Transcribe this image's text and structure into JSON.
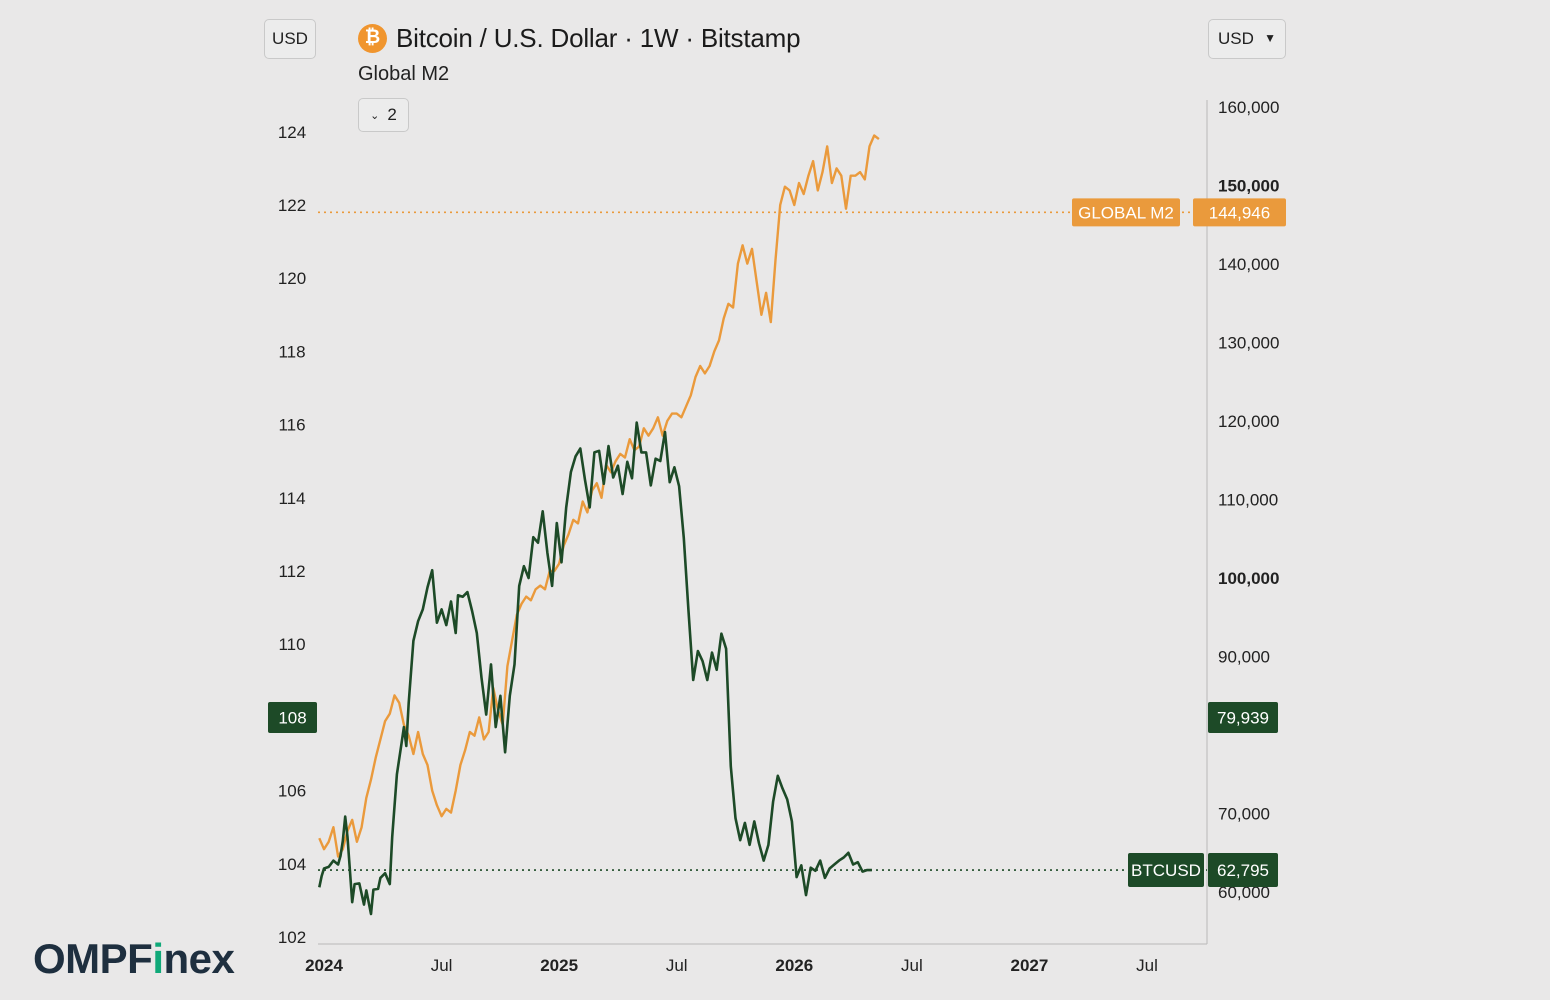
{
  "header": {
    "currency_left": "USD",
    "currency_right": "USD",
    "coin_symbol": "₿",
    "title": "Bitcoin / U.S. Dollar · 1W · Bitstamp",
    "subtitle": "Global M2",
    "indicator_count": "2"
  },
  "brand": {
    "logo_prefix": "OMPF",
    "logo_accent": "i",
    "logo_suffix": "nex"
  },
  "colors": {
    "m2": "#ea9a3c",
    "btc": "#1d4a27",
    "grid_line": "#b9b9b9",
    "brand_text": "#1e2f3f",
    "brand_accent": "#10a979"
  },
  "chart_data": {
    "type": "line",
    "left_axis": {
      "ticks": [
        102,
        104,
        106,
        108,
        110,
        112,
        114,
        116,
        118,
        120,
        122,
        124
      ],
      "ylim": [
        102,
        125
      ],
      "series": "Global M2"
    },
    "right_axis": {
      "ticks": [
        "60,000",
        "70,000",
        "90,000",
        "100,000",
        "110,000",
        "120,000",
        "130,000",
        "140,000",
        "150,000",
        "160,000"
      ],
      "ylim": [
        55000,
        160000
      ],
      "series": "BTCUSD"
    },
    "x_ticks": [
      {
        "label": "2024",
        "bold": true,
        "x": 2024.0
      },
      {
        "label": "Jul",
        "bold": false,
        "x": 2024.5
      },
      {
        "label": "2025",
        "bold": true,
        "x": 2025.0
      },
      {
        "label": "Jul",
        "bold": false,
        "x": 2025.5
      },
      {
        "label": "2026",
        "bold": true,
        "x": 2026.0
      },
      {
        "label": "Jul",
        "bold": false,
        "x": 2026.5
      },
      {
        "label": "2027",
        "bold": true,
        "x": 2027.0
      },
      {
        "label": "Jul",
        "bold": false,
        "x": 2027.5
      }
    ],
    "xlim": [
      2023.96,
      2027.7
    ],
    "series": [
      {
        "name": "GLOBAL M2",
        "axis": "left",
        "last_label": "144,946",
        "x": [
          2023.98,
          2024.0,
          2024.02,
          2024.04,
          2024.06,
          2024.08,
          2024.1,
          2024.12,
          2024.14,
          2024.16,
          2024.18,
          2024.2,
          2024.22,
          2024.24,
          2024.26,
          2024.28,
          2024.3,
          2024.32,
          2024.34,
          2024.36,
          2024.38,
          2024.4,
          2024.42,
          2024.44,
          2024.46,
          2024.48,
          2024.5,
          2024.52,
          2024.54,
          2024.56,
          2024.58,
          2024.6,
          2024.62,
          2024.64,
          2024.66,
          2024.68,
          2024.7,
          2024.72,
          2024.74,
          2024.76,
          2024.78,
          2024.8,
          2024.82,
          2024.84,
          2024.86,
          2024.88,
          2024.9,
          2024.92,
          2024.94,
          2024.96,
          2024.98,
          2025.0,
          2025.02,
          2025.04,
          2025.06,
          2025.08,
          2025.1,
          2025.12,
          2025.14,
          2025.16,
          2025.18,
          2025.2,
          2025.22,
          2025.24,
          2025.26,
          2025.28,
          2025.3,
          2025.32,
          2025.34,
          2025.36,
          2025.38,
          2025.4,
          2025.42,
          2025.44,
          2025.46,
          2025.48,
          2025.5,
          2025.52,
          2025.54,
          2025.56,
          2025.58,
          2025.6,
          2025.62,
          2025.64,
          2025.66,
          2025.68,
          2025.7,
          2025.72,
          2025.74,
          2025.76,
          2025.78,
          2025.8,
          2025.82,
          2025.84,
          2025.86,
          2025.88,
          2025.9,
          2025.92,
          2025.94,
          2025.96,
          2025.98,
          2026.0,
          2026.02,
          2026.04,
          2026.06,
          2026.08,
          2026.1,
          2026.12,
          2026.14,
          2026.16,
          2026.18,
          2026.2,
          2026.22,
          2026.24,
          2026.26,
          2026.28,
          2026.3,
          2026.32,
          2026.34,
          2026.36
        ],
        "values": [
          104.7,
          104.4,
          104.6,
          105.0,
          104.2,
          104.4,
          104.9,
          105.2,
          104.6,
          105.0,
          105.8,
          106.3,
          106.9,
          107.4,
          107.9,
          108.1,
          108.6,
          108.4,
          107.8,
          107.5,
          107.0,
          107.6,
          107.0,
          106.7,
          106.0,
          105.6,
          105.3,
          105.5,
          105.4,
          106.0,
          106.7,
          107.1,
          107.6,
          107.5,
          108.0,
          107.4,
          107.6,
          108.8,
          108.2,
          107.8,
          109.4,
          110.1,
          110.8,
          111.1,
          111.3,
          111.2,
          111.5,
          111.6,
          111.5,
          112.0,
          112.0,
          112.2,
          112.7,
          113.0,
          113.4,
          113.3,
          113.9,
          113.6,
          114.2,
          114.4,
          114.0,
          114.9,
          114.7,
          115.0,
          115.2,
          115.1,
          115.6,
          115.3,
          115.4,
          115.9,
          115.7,
          115.9,
          116.2,
          115.7,
          116.1,
          116.3,
          116.3,
          116.2,
          116.5,
          116.8,
          117.3,
          117.6,
          117.4,
          117.6,
          118.0,
          118.3,
          118.9,
          119.3,
          119.2,
          120.4,
          120.9,
          120.4,
          120.8,
          119.9,
          119.0,
          119.6,
          118.8,
          120.5,
          122.0,
          122.5,
          122.4,
          122.0,
          122.6,
          122.3,
          122.8,
          123.2,
          122.4,
          122.9,
          123.6,
          122.6,
          123.0,
          122.8,
          121.9,
          122.8,
          122.8,
          122.9,
          122.7,
          123.6,
          123.9,
          123.8
        ]
      },
      {
        "name": "BTCUSD",
        "axis": "right",
        "last_label": "62,795",
        "x": [
          2023.98,
          2023.99,
          2024.0,
          2024.02,
          2024.03,
          2024.04,
          2024.06,
          2024.07,
          2024.08,
          2024.09,
          2024.1,
          2024.12,
          2024.13,
          2024.15,
          2024.17,
          2024.18,
          2024.2,
          2024.21,
          2024.23,
          2024.24,
          2024.26,
          2024.28,
          2024.29,
          2024.31,
          2024.33,
          2024.34,
          2024.35,
          2024.36,
          2024.38,
          2024.4,
          2024.42,
          2024.44,
          2024.46,
          2024.48,
          2024.5,
          2024.52,
          2024.54,
          2024.56,
          2024.57,
          2024.59,
          2024.61,
          2024.63,
          2024.65,
          2024.67,
          2024.69,
          2024.71,
          2024.73,
          2024.75,
          2024.77,
          2024.79,
          2024.81,
          2024.83,
          2024.85,
          2024.87,
          2024.89,
          2024.91,
          2024.93,
          2024.95,
          2024.97,
          2024.99,
          2025.01,
          2025.03,
          2025.05,
          2025.07,
          2025.09,
          2025.11,
          2025.13,
          2025.15,
          2025.17,
          2025.19,
          2025.21,
          2025.23,
          2025.25,
          2025.27,
          2025.29,
          2025.31,
          2025.33,
          2025.35,
          2025.37,
          2025.39,
          2025.41,
          2025.43,
          2025.45,
          2025.47,
          2025.49,
          2025.51,
          2025.53,
          2025.55,
          2025.57,
          2025.59,
          2025.61,
          2025.63,
          2025.65,
          2025.67,
          2025.69,
          2025.71,
          2025.73,
          2025.75,
          2025.77,
          2025.79,
          2025.81,
          2025.83,
          2025.85,
          2025.87,
          2025.89,
          2025.91,
          2025.93,
          2025.95,
          2025.97,
          2025.99,
          2026.01,
          2026.03,
          2026.05,
          2026.07,
          2026.09,
          2026.11,
          2026.13,
          2026.15,
          2026.17,
          2026.19,
          2026.21,
          2026.23,
          2026.25,
          2026.27,
          2026.29,
          2026.31,
          2026.33
        ],
        "values": [
          60600,
          62000,
          63000,
          63200,
          63600,
          64000,
          63500,
          64600,
          66500,
          69600,
          67000,
          58700,
          61000,
          61100,
          58400,
          60200,
          57200,
          60300,
          60400,
          61800,
          62400,
          61000,
          67000,
          75000,
          79000,
          81000,
          78600,
          84100,
          92000,
          94500,
          96000,
          98800,
          101000,
          94300,
          96000,
          94000,
          97000,
          93000,
          97800,
          97600,
          98200,
          95800,
          93000,
          87300,
          82600,
          89000,
          81000,
          85000,
          77800,
          85000,
          89000,
          99000,
          101500,
          100000,
          105200,
          104500,
          108500,
          103200,
          99000,
          107000,
          102000,
          109000,
          113500,
          115500,
          116500,
          112500,
          109000,
          116000,
          116200,
          112000,
          116800,
          112800,
          114300,
          110700,
          114800,
          112700,
          119800,
          116000,
          116000,
          111800,
          115200,
          114900,
          118600,
          112200,
          114100,
          111700,
          105100,
          95800,
          87000,
          90700,
          89400,
          87000,
          90500,
          88300,
          92900,
          91000,
          76000,
          69400,
          66600,
          68800,
          66000,
          69000,
          66200,
          64000,
          66000,
          71500,
          74800,
          73200,
          71800,
          69000,
          61900,
          63400,
          59600,
          63100,
          62700,
          64000,
          61800,
          63000,
          63500,
          64000,
          64400,
          65000,
          63500,
          63800,
          62600,
          62800,
          62795
        ]
      }
    ],
    "reference_lines": [
      {
        "series": "GLOBAL M2",
        "value": 121.8,
        "axis": "left"
      },
      {
        "series": "BTCUSD",
        "value": 62795,
        "axis": "right"
      }
    ],
    "crosshair_labels": {
      "left_value": "108",
      "right_value": "79,939"
    },
    "right_axis_value_labels": {
      "m2_badge": "144,946",
      "btc_badge": "62,795"
    }
  }
}
